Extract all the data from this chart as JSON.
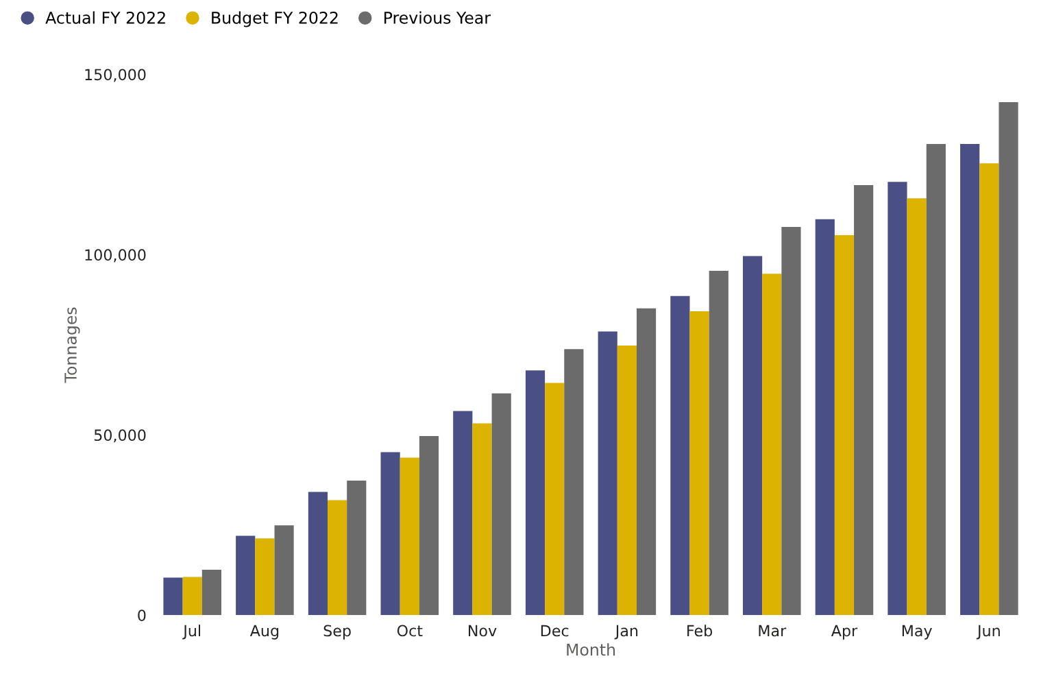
{
  "chart_data": {
    "type": "bar",
    "xlabel": "Month",
    "ylabel": "Tonnages",
    "categories": [
      "Jul",
      "Aug",
      "Sep",
      "Oct",
      "Nov",
      "Dec",
      "Jan",
      "Feb",
      "Mar",
      "Apr",
      "May",
      "Jun"
    ],
    "series": [
      {
        "name": "Actual FY 2022",
        "color": "#4a4f85",
        "values": [
          10400,
          22000,
          34200,
          45200,
          56600,
          67900,
          78700,
          88500,
          99600,
          109800,
          120200,
          130700
        ]
      },
      {
        "name": "Budget FY 2022",
        "color": "#dbb300",
        "values": [
          10600,
          21300,
          31900,
          43700,
          53200,
          64400,
          74800,
          84300,
          94700,
          105400,
          115600,
          125300
        ]
      },
      {
        "name": "Previous Year",
        "color": "#6b6b6b",
        "values": [
          12600,
          24900,
          37300,
          49700,
          61500,
          73800,
          85100,
          95500,
          107700,
          119300,
          130700,
          142300
        ]
      }
    ],
    "ylim": [
      0,
      150000
    ],
    "yticks": [
      {
        "value": 0,
        "label": "0"
      },
      {
        "value": 50000,
        "label": "50,000"
      },
      {
        "value": 100000,
        "label": "100,000"
      },
      {
        "value": 150000,
        "label": "150,000"
      }
    ],
    "grid": false,
    "legend": "top left"
  }
}
